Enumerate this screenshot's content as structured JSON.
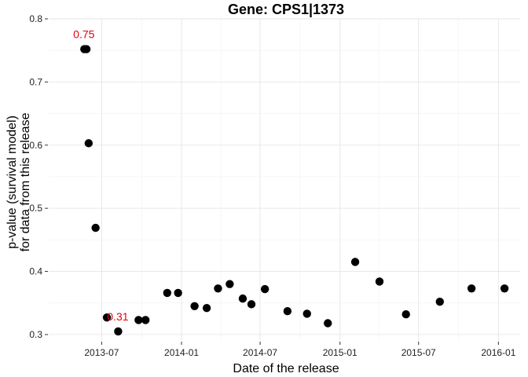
{
  "chart_data": {
    "type": "scatter",
    "title": "Gene: CPS1|1373",
    "xlabel": "Date of the release",
    "ylabel_lines": [
      "p-value (survival model)",
      "for data from this release"
    ],
    "x_is_date": true,
    "xlim": [
      "2013-03-01",
      "2016-02-20"
    ],
    "ylim": [
      0.29,
      0.8
    ],
    "x_ticks": [
      {
        "date": "2013-07-01",
        "label": "2013-07"
      },
      {
        "date": "2014-01-01",
        "label": "2014-01"
      },
      {
        "date": "2014-07-01",
        "label": "2014-07"
      },
      {
        "date": "2015-01-01",
        "label": "2015-01"
      },
      {
        "date": "2015-07-01",
        "label": "2015-07"
      },
      {
        "date": "2016-01-01",
        "label": "2016-01"
      }
    ],
    "y_ticks": [
      0.3,
      0.4,
      0.5,
      0.6,
      0.7,
      0.8
    ],
    "grid": true,
    "points": [
      {
        "x": "2013-05-22",
        "y": 0.752
      },
      {
        "x": "2013-05-27",
        "y": 0.752
      },
      {
        "x": "2013-06-01",
        "y": 0.603
      },
      {
        "x": "2013-06-17",
        "y": 0.469
      },
      {
        "x": "2013-07-13",
        "y": 0.327
      },
      {
        "x": "2013-08-08",
        "y": 0.305
      },
      {
        "x": "2013-09-24",
        "y": 0.323
      },
      {
        "x": "2013-10-10",
        "y": 0.323
      },
      {
        "x": "2013-11-29",
        "y": 0.366
      },
      {
        "x": "2013-12-24",
        "y": 0.366
      },
      {
        "x": "2014-01-31",
        "y": 0.345
      },
      {
        "x": "2014-02-28",
        "y": 0.342
      },
      {
        "x": "2014-03-26",
        "y": 0.373
      },
      {
        "x": "2014-04-22",
        "y": 0.38
      },
      {
        "x": "2014-05-22",
        "y": 0.357
      },
      {
        "x": "2014-06-11",
        "y": 0.348
      },
      {
        "x": "2014-07-12",
        "y": 0.372
      },
      {
        "x": "2014-09-02",
        "y": 0.337
      },
      {
        "x": "2014-10-17",
        "y": 0.333
      },
      {
        "x": "2014-12-04",
        "y": 0.318
      },
      {
        "x": "2015-02-05",
        "y": 0.415
      },
      {
        "x": "2015-04-02",
        "y": 0.384
      },
      {
        "x": "2015-06-02",
        "y": 0.332
      },
      {
        "x": "2015-08-19",
        "y": 0.352
      },
      {
        "x": "2015-10-31",
        "y": 0.373
      },
      {
        "x": "2016-01-15",
        "y": 0.373
      }
    ],
    "annotations": [
      {
        "text": "0.75",
        "x": "2013-05-22",
        "y": 0.752,
        "color": "#e8000b"
      },
      {
        "text": "0.31",
        "x": "2013-08-08",
        "y": 0.305,
        "color": "#e8000b"
      }
    ],
    "point_color": "#000000"
  }
}
